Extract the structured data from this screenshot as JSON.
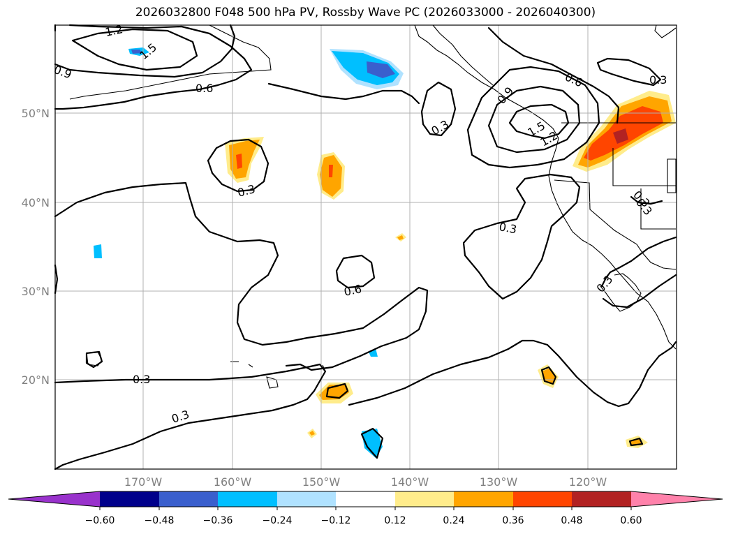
{
  "title": "2026032800 F048 500 hPa PV, Rossby Wave PC (2026033000 - 2026040300)",
  "lat_labels": [
    "50°N",
    "40°N",
    "30°N",
    "20°N"
  ],
  "lon_labels": [
    "170°W",
    "160°W",
    "150°W",
    "140°W",
    "130°W",
    "120°W"
  ],
  "contour_labels": [
    "1.2",
    "1.5",
    "0.9",
    "0.6",
    "0.3",
    "0.6",
    "0.9",
    "1.2",
    "1.5",
    "0.3",
    "0.3",
    "0.3",
    "0.3",
    "0.6",
    "0.3",
    "0.3",
    "0.3",
    "0.3"
  ],
  "colorbar": {
    "ticks": [
      "−0.60",
      "−0.48",
      "−0.36",
      "−0.24",
      "−0.12",
      "0.12",
      "0.24",
      "0.36",
      "0.48",
      "0.60"
    ],
    "colors": [
      "#9932cc",
      "#00008b",
      "#3a5fcd",
      "#00bfff",
      "#b0e2ff",
      "#ffffff",
      "#ffec8b",
      "#ffa500",
      "#ff4500",
      "#b22222",
      "#ff82ab"
    ]
  }
}
